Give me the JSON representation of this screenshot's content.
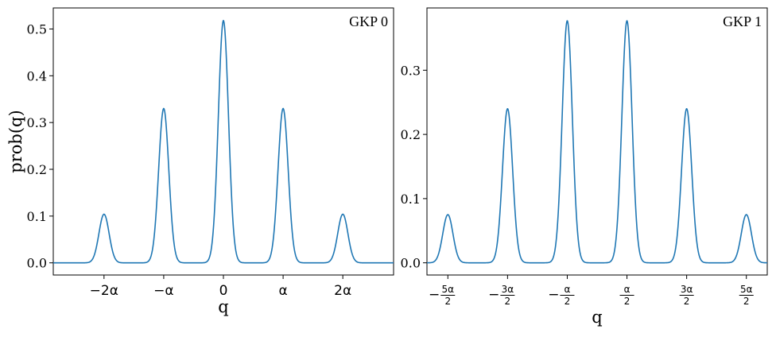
{
  "chart_data": [
    {
      "type": "line",
      "title": "GKP 0",
      "xlabel": "q",
      "ylabel": "prob(q)",
      "xlim": [
        -2.85,
        2.85
      ],
      "ylim": [
        -0.026,
        0.545
      ],
      "x_ticks": [
        {
          "x": -2,
          "label": "−2α"
        },
        {
          "x": -1,
          "label": "−α"
        },
        {
          "x": 0,
          "label": "0"
        },
        {
          "x": 1,
          "label": "α"
        },
        {
          "x": 2,
          "label": "2α"
        }
      ],
      "y_ticks": [
        {
          "y": 0.0,
          "label": "0.0"
        },
        {
          "y": 0.1,
          "label": "0.1"
        },
        {
          "y": 0.2,
          "label": "0.2"
        },
        {
          "y": 0.3,
          "label": "0.3"
        },
        {
          "y": 0.4,
          "label": "0.4"
        },
        {
          "y": 0.5,
          "label": "0.5"
        }
      ],
      "series": [
        {
          "color": "#1f77b4",
          "peaks": [
            {
              "x": -2,
              "y": 0.104
            },
            {
              "x": -1,
              "y": 0.33
            },
            {
              "x": 0,
              "y": 0.518
            },
            {
              "x": 1,
              "y": 0.33
            },
            {
              "x": 2,
              "y": 0.104
            }
          ]
        }
      ]
    },
    {
      "type": "line",
      "title": "GKP 1",
      "xlabel": "q",
      "ylabel": "",
      "xlim": [
        -2.85,
        2.85
      ],
      "ylim": [
        -0.019,
        0.397
      ],
      "x_ticks": [
        {
          "x": -2.5,
          "sign": "−",
          "num": "5α",
          "den": "2"
        },
        {
          "x": -1.5,
          "sign": "−",
          "num": "3α",
          "den": "2"
        },
        {
          "x": -0.5,
          "sign": "−",
          "num": "α",
          "den": "2"
        },
        {
          "x": 0.5,
          "sign": "",
          "num": "α",
          "den": "2"
        },
        {
          "x": 1.5,
          "sign": "",
          "num": "3α",
          "den": "2"
        },
        {
          "x": 2.5,
          "sign": "",
          "num": "5α",
          "den": "2"
        }
      ],
      "y_ticks": [
        {
          "y": 0.0,
          "label": "0.0"
        },
        {
          "y": 0.1,
          "label": "0.1"
        },
        {
          "y": 0.2,
          "label": "0.2"
        },
        {
          "y": 0.3,
          "label": "0.3"
        }
      ],
      "series": [
        {
          "color": "#1f77b4",
          "peaks": [
            {
              "x": -2.5,
              "y": 0.075
            },
            {
              "x": -1.5,
              "y": 0.24
            },
            {
              "x": -0.5,
              "y": 0.377
            },
            {
              "x": 0.5,
              "y": 0.377
            },
            {
              "x": 1.5,
              "y": 0.24
            },
            {
              "x": 2.5,
              "y": 0.075
            }
          ]
        }
      ]
    }
  ]
}
